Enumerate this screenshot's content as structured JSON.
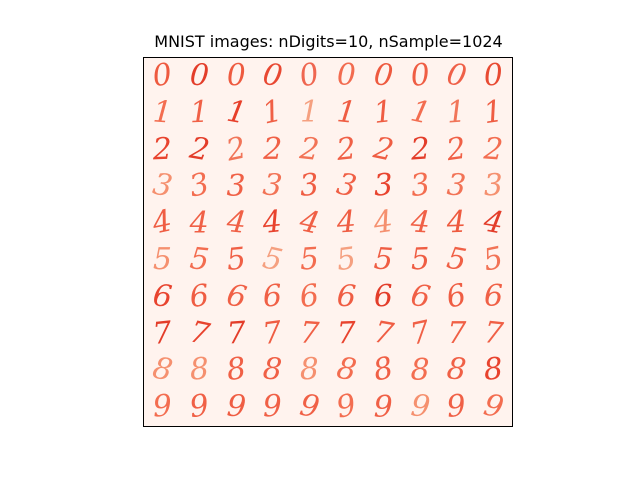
{
  "figure": {
    "title": "MNIST images: nDigits=10, nSample=1024"
  },
  "grid": {
    "rows": [
      {
        "digit": "0",
        "samples": [
          "0",
          "0",
          "0",
          "0",
          "0",
          "0",
          "0",
          "0",
          "0",
          "0"
        ],
        "colors": [
          "#ee5a3f",
          "#e33d2a",
          "#ee5a3f",
          "#e84832",
          "#ef6650",
          "#f26b4f",
          "#ee5a3f",
          "#ef5d43",
          "#ef6048",
          "#e84a32"
        ]
      },
      {
        "digit": "1",
        "samples": [
          "1",
          "1",
          "1",
          "1",
          "1",
          "1",
          "1",
          "1",
          "1",
          "1"
        ],
        "colors": [
          "#f36d50",
          "#f06046",
          "#e73f2a",
          "#f06046",
          "#f5a080",
          "#ef5d43",
          "#ef5d43",
          "#f36d50",
          "#f17559",
          "#ef5d43"
        ]
      },
      {
        "digit": "2",
        "samples": [
          "2",
          "2",
          "2",
          "2",
          "2",
          "2",
          "2",
          "2",
          "2",
          "2"
        ],
        "colors": [
          "#e8432e",
          "#e33d2a",
          "#f17559",
          "#f06046",
          "#f27356",
          "#f06046",
          "#ef5d43",
          "#e33d2a",
          "#f06046",
          "#f36d50"
        ]
      },
      {
        "digit": "3",
        "samples": [
          "3",
          "3",
          "3",
          "3",
          "3",
          "3",
          "3",
          "3",
          "3",
          "3"
        ],
        "colors": [
          "#f5906f",
          "#f36d50",
          "#f06046",
          "#f27356",
          "#ef5d43",
          "#f06046",
          "#e8432e",
          "#f36d50",
          "#f27356",
          "#f5906f"
        ]
      },
      {
        "digit": "4",
        "samples": [
          "4",
          "4",
          "4",
          "4",
          "4",
          "4",
          "4",
          "4",
          "4",
          "4"
        ],
        "colors": [
          "#ef5d43",
          "#f06046",
          "#f06046",
          "#e8432e",
          "#f06046",
          "#ef5d43",
          "#f5906f",
          "#f06046",
          "#ee5a3f",
          "#e33d2a"
        ]
      },
      {
        "digit": "5",
        "samples": [
          "5",
          "5",
          "5",
          "5",
          "5",
          "5",
          "5",
          "5",
          "5",
          "5"
        ],
        "colors": [
          "#f5906f",
          "#f36d50",
          "#f06046",
          "#f5a080",
          "#f36d50",
          "#f5a080",
          "#ef5d43",
          "#ef5d43",
          "#f06046",
          "#f27356"
        ]
      },
      {
        "digit": "6",
        "samples": [
          "6",
          "6",
          "6",
          "6",
          "6",
          "6",
          "6",
          "6",
          "6",
          "6"
        ],
        "colors": [
          "#e8432e",
          "#ef5d43",
          "#f06046",
          "#f06046",
          "#f36d50",
          "#ef5d43",
          "#e33d2a",
          "#f06046",
          "#ef5d43",
          "#f06046"
        ]
      },
      {
        "digit": "7",
        "samples": [
          "7",
          "7",
          "7",
          "7",
          "7",
          "7",
          "7",
          "7",
          "7",
          "7"
        ],
        "colors": [
          "#e33d2a",
          "#e8432e",
          "#e33d2a",
          "#ef5d43",
          "#f06046",
          "#e8432e",
          "#ef5d43",
          "#f06046",
          "#f06046",
          "#f06046"
        ]
      },
      {
        "digit": "8",
        "samples": [
          "8",
          "8",
          "8",
          "8",
          "8",
          "8",
          "8",
          "8",
          "8",
          "8"
        ],
        "colors": [
          "#f5906f",
          "#f5906f",
          "#f06046",
          "#f06046",
          "#f5906f",
          "#f36d50",
          "#f06046",
          "#f36d50",
          "#f06046",
          "#e8432e"
        ]
      },
      {
        "digit": "9",
        "samples": [
          "9",
          "9",
          "9",
          "9",
          "9",
          "9",
          "9",
          "9",
          "9",
          "9"
        ],
        "colors": [
          "#f36d50",
          "#f06046",
          "#ef5d43",
          "#f06046",
          "#f06046",
          "#f36d50",
          "#f06046",
          "#f5906f",
          "#f06046",
          "#f36d50"
        ]
      }
    ]
  },
  "colors": {
    "background": "#fff3ee",
    "frame": "#000000"
  }
}
